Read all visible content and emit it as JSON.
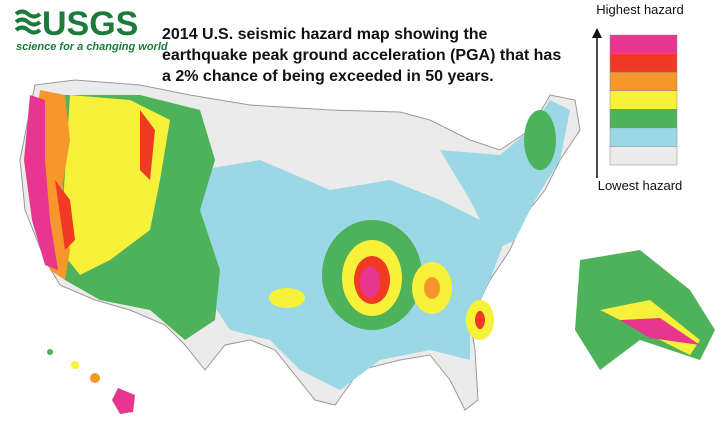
{
  "logo": {
    "name": "USGS",
    "tagline": "science for a changing world"
  },
  "title": "2014 U.S. seismic hazard map showing the earthquake peak ground acceleration (PGA) that has a 2% chance of being exceeded in 50 years.",
  "legend": {
    "high": "Highest hazard",
    "low": "Lowest hazard",
    "colors": [
      "#e8358f",
      "#f03a24",
      "#f7962b",
      "#f7f13a",
      "#4db25a",
      "#9ad8e6",
      "#ebebeb"
    ]
  }
}
